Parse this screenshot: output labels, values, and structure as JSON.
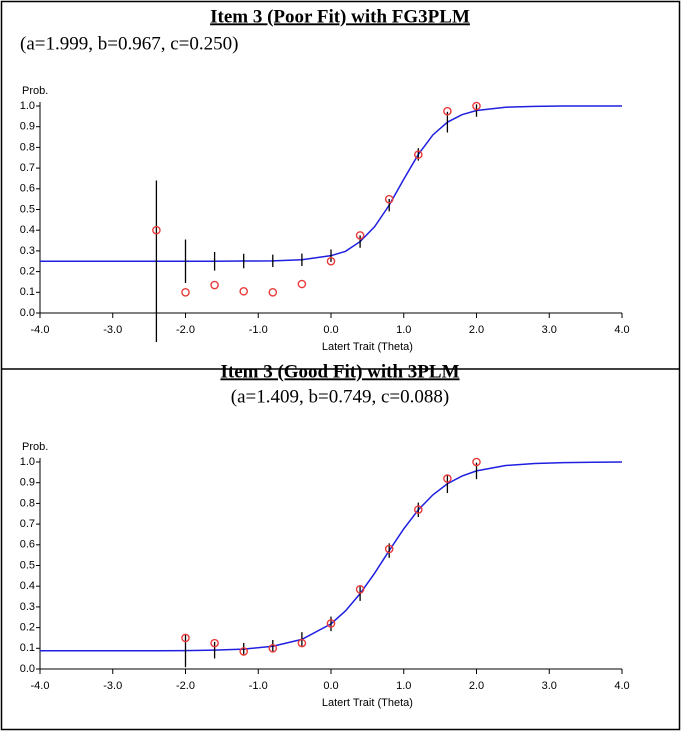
{
  "chart_data": [
    {
      "type": "line",
      "title": "Item 3 (Poor Fit) with FG3PLM",
      "subtitle": "(a=1.999, b=0.967, c=0.250)",
      "ylabel": "Prob.",
      "xlabel": "Latert Trait (Theta)",
      "xlim": [
        -4,
        4
      ],
      "ylim": [
        0,
        1
      ],
      "xticks": [
        {
          "value": -4,
          "label": "-4.0"
        },
        {
          "value": -3,
          "label": "-3.0"
        },
        {
          "value": -2,
          "label": "-2.0"
        },
        {
          "value": -1,
          "label": "-1.0"
        },
        {
          "value": 0,
          "label": "0.0"
        },
        {
          "value": 1,
          "label": "1.0"
        },
        {
          "value": 2,
          "label": "2.0"
        },
        {
          "value": 3,
          "label": "3.0"
        },
        {
          "value": 4,
          "label": "4.0"
        }
      ],
      "yticks": [
        {
          "value": 0,
          "label": "0.0"
        },
        0.1,
        0.2,
        0.3,
        0.4,
        0.5,
        0.6,
        0.7,
        0.8,
        0.9,
        {
          "value": 1,
          "label": "1.0"
        }
      ],
      "curve": {
        "color": "#1f1fe0",
        "x": [
          -4,
          -3.6,
          -3.2,
          -2.8,
          -2.4,
          -2,
          -1.6,
          -1.2,
          -0.8,
          -0.4,
          0,
          0.2,
          0.4,
          0.6,
          0.8,
          1,
          1.2,
          1.4,
          1.6,
          1.8,
          2,
          2.4,
          2.8,
          3.2,
          3.6,
          4
        ],
        "values": [
          0.25,
          0.25,
          0.25,
          0.25,
          0.25,
          0.25,
          0.25,
          0.251,
          0.252,
          0.257,
          0.277,
          0.298,
          0.345,
          0.417,
          0.521,
          0.646,
          0.766,
          0.86,
          0.922,
          0.958,
          0.978,
          0.994,
          0.998,
          1,
          1,
          1
        ]
      },
      "points": {
        "color": "#e83a3a",
        "x": [
          -2.4,
          -2,
          -1.6,
          -1.2,
          -0.8,
          -0.4,
          0,
          0.4,
          0.8,
          1.2,
          1.6,
          2
        ],
        "values": [
          0.4,
          0.1,
          0.135,
          0.105,
          0.1,
          0.14,
          0.25,
          0.375,
          0.55,
          0.765,
          0.975,
          1.0
        ]
      },
      "error_bars": {
        "color": "#000000",
        "x": [
          -2.4,
          -2,
          -1.6,
          -1.2,
          -0.8,
          -0.4,
          0,
          0.4,
          0.8,
          1.2,
          1.6,
          2
        ],
        "values": [
          0.25,
          0.25,
          0.25,
          0.251,
          0.252,
          0.257,
          0.277,
          0.345,
          0.521,
          0.766,
          0.922,
          0.978
        ],
        "errors": [
          0.39,
          0.105,
          0.045,
          0.035,
          0.03,
          0.03,
          0.03,
          0.03,
          0.03,
          0.03,
          0.05,
          0.03
        ]
      }
    },
    {
      "type": "line",
      "title": "Item 3 (Good Fit) with 3PLM",
      "subtitle": "(a=1.409, b=0.749, c=0.088)",
      "ylabel": "Prob.",
      "xlabel": "Latert Trait (Theta)",
      "xlim": [
        -4,
        4
      ],
      "ylim": [
        0,
        1
      ],
      "xticks": [
        {
          "value": -4,
          "label": "-4.0"
        },
        {
          "value": -3,
          "label": "-3.0"
        },
        {
          "value": -2,
          "label": "-2.0"
        },
        {
          "value": -1,
          "label": "-1.0"
        },
        {
          "value": 0,
          "label": "0.0"
        },
        {
          "value": 1,
          "label": "1.0"
        },
        {
          "value": 2,
          "label": "2.0"
        },
        {
          "value": 3,
          "label": "3.0"
        },
        {
          "value": 4,
          "label": "4.0"
        }
      ],
      "yticks": [
        {
          "value": 0,
          "label": "0.0"
        },
        0.1,
        0.2,
        0.3,
        0.4,
        0.5,
        0.6,
        0.7,
        0.8,
        0.9,
        {
          "value": 1,
          "label": "1.0"
        }
      ],
      "curve": {
        "color": "#1f1fe0",
        "x": [
          -4,
          -3.6,
          -3.2,
          -2.8,
          -2.4,
          -2,
          -1.6,
          -1.2,
          -0.8,
          -0.4,
          0,
          0.2,
          0.4,
          0.6,
          0.8,
          1,
          1.2,
          1.4,
          1.6,
          1.8,
          2,
          2.4,
          2.8,
          3.2,
          3.6,
          4
        ],
        "values": [
          0.088,
          0.088,
          0.088,
          0.088,
          0.088,
          0.089,
          0.091,
          0.096,
          0.11,
          0.143,
          0.218,
          0.281,
          0.364,
          0.463,
          0.572,
          0.677,
          0.769,
          0.841,
          0.895,
          0.932,
          0.957,
          0.983,
          0.993,
          0.997,
          0.999,
          1
        ]
      },
      "points": {
        "color": "#e83a3a",
        "x": [
          -2,
          -1.6,
          -1.2,
          -0.8,
          -0.4,
          0,
          0.4,
          0.8,
          1.2,
          1.6,
          2
        ],
        "values": [
          0.15,
          0.125,
          0.085,
          0.1,
          0.125,
          0.22,
          0.385,
          0.58,
          0.77,
          0.92,
          1.0
        ]
      },
      "error_bars": {
        "color": "#000000",
        "x": [
          -2,
          -1.6,
          -1.2,
          -0.8,
          -0.4,
          0,
          0.4,
          0.8,
          1.2,
          1.6,
          2
        ],
        "values": [
          0.089,
          0.091,
          0.096,
          0.11,
          0.143,
          0.218,
          0.364,
          0.572,
          0.769,
          0.895,
          0.957
        ],
        "errors": [
          0.08,
          0.04,
          0.03,
          0.03,
          0.035,
          0.035,
          0.035,
          0.035,
          0.035,
          0.045,
          0.04
        ]
      }
    }
  ]
}
